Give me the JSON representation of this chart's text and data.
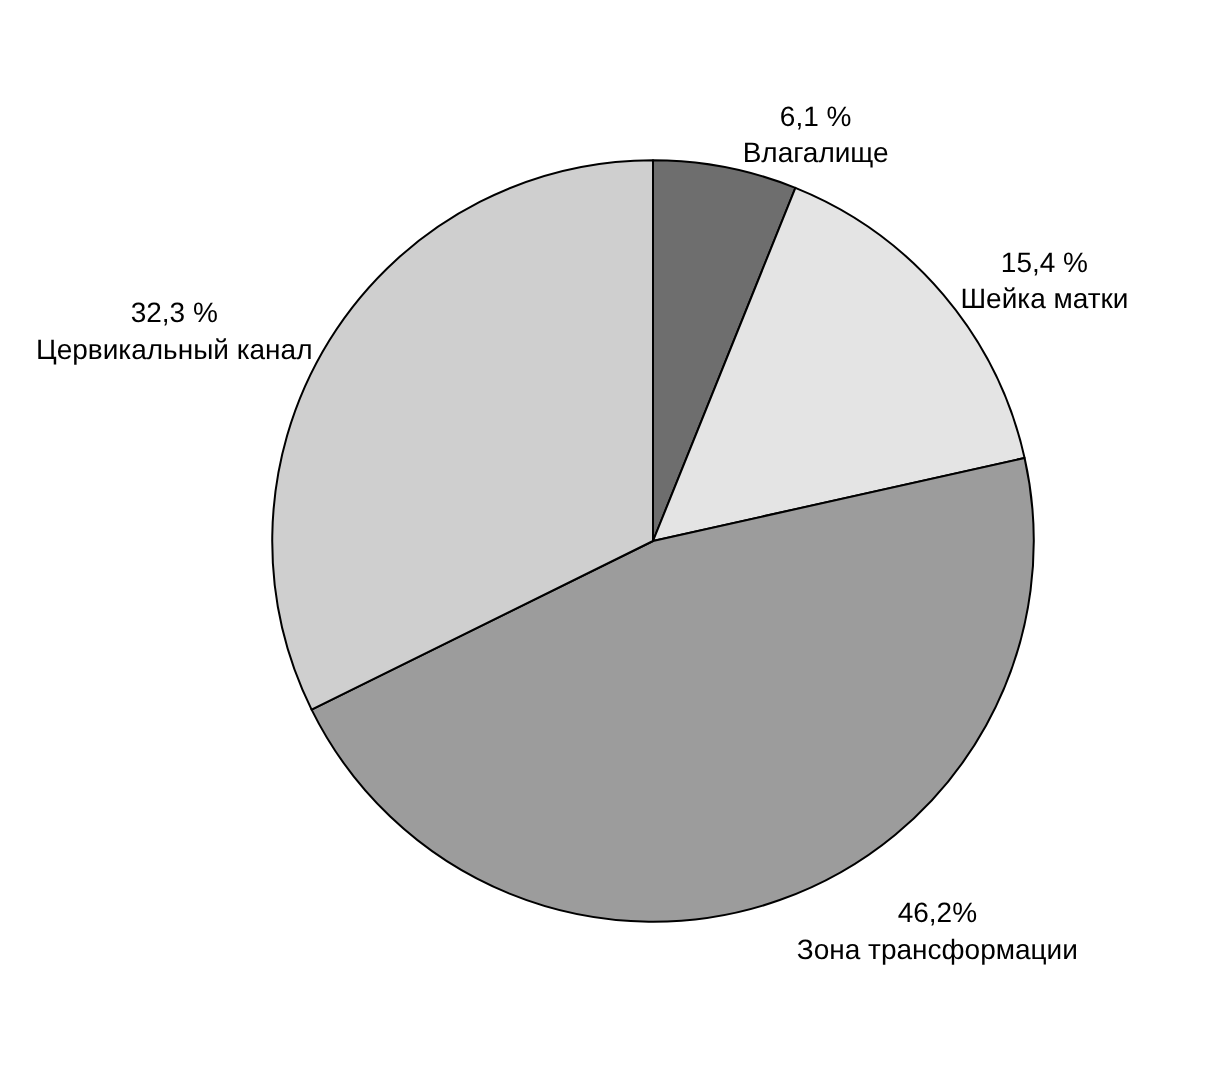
{
  "chart_data": {
    "type": "pie",
    "categories": [
      "Влагалище",
      "Шейка матки",
      "Зона трансформации",
      "Цервикальный канал"
    ],
    "values": [
      6.1,
      15.4,
      46.2,
      32.3
    ],
    "value_labels": [
      "6,1 %",
      "15,4 %",
      "46,2%",
      "32,3 %"
    ],
    "colors": [
      "#6e6e6e",
      "#e4e4e4",
      "#9c9c9c",
      "#cfcfcf"
    ],
    "legend": false
  }
}
